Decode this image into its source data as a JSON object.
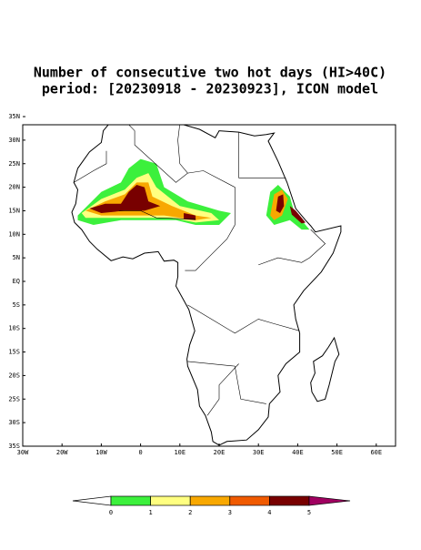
{
  "title": [
    "Number of consecutive two hot days (HI>40C)",
    "period: [20230918 - 20230923], ICON model"
  ],
  "map": {
    "lat_labels": [
      {
        "value": 35,
        "label": "35N"
      },
      {
        "value": 30,
        "label": "30N"
      },
      {
        "value": 25,
        "label": "25N"
      },
      {
        "value": 20,
        "label": "20N"
      },
      {
        "value": 15,
        "label": "15N"
      },
      {
        "value": 10,
        "label": "10N"
      },
      {
        "value": 5,
        "label": "5N"
      },
      {
        "value": 0,
        "label": "EQ"
      },
      {
        "value": -5,
        "label": "5S"
      },
      {
        "value": -10,
        "label": "10S"
      },
      {
        "value": -15,
        "label": "15S"
      },
      {
        "value": -20,
        "label": "20S"
      },
      {
        "value": -25,
        "label": "25S"
      },
      {
        "value": -30,
        "label": "30S"
      },
      {
        "value": -35,
        "label": "35S"
      }
    ],
    "lon_labels": [
      {
        "value": -30,
        "label": "30W"
      },
      {
        "value": -20,
        "label": "20W"
      },
      {
        "value": -10,
        "label": "10W"
      },
      {
        "value": 0,
        "label": "0"
      },
      {
        "value": 10,
        "label": "10E"
      },
      {
        "value": 20,
        "label": "20E"
      },
      {
        "value": 30,
        "label": "30E"
      },
      {
        "value": 40,
        "label": "40E"
      },
      {
        "value": 50,
        "label": "50E"
      },
      {
        "value": 60,
        "label": "60E"
      }
    ]
  },
  "colorbar": {
    "ticks": [
      0,
      1,
      2,
      3,
      4,
      5
    ],
    "colors": [
      "#ffffff",
      "#3cf03c",
      "#ffff80",
      "#f8a800",
      "#f05a00",
      "#780000",
      "#a00060"
    ]
  }
}
